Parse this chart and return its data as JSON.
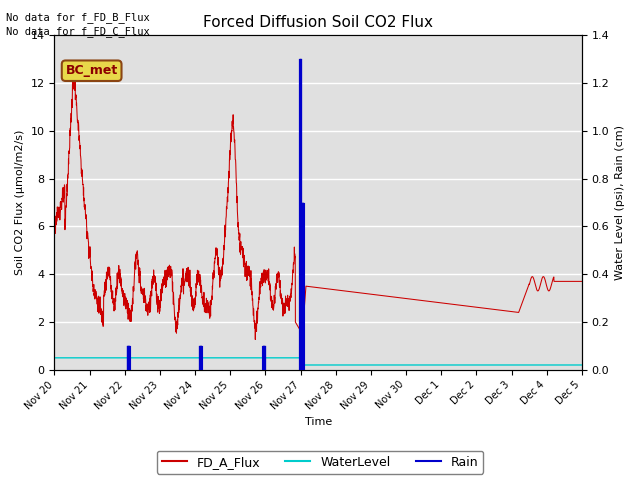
{
  "title": "Forced Diffusion Soil CO2 Flux",
  "xlabel": "Time",
  "ylabel_left": "Soil CO2 Flux (μmol/m2/s)",
  "ylabel_right": "Water Level (psi), Rain (cm)",
  "annotations": [
    "No data for f_FD_B_Flux",
    "No data for f_FD_C_Flux"
  ],
  "bc_met_label": "BC_met",
  "ylim_left": [
    0,
    14
  ],
  "ylim_right": [
    0,
    1.4
  ],
  "legend_labels": [
    "FD_A_Flux",
    "WaterLevel",
    "Rain"
  ],
  "flux_color": "#cc0000",
  "water_color": "#00cccc",
  "rain_color": "#0000cc",
  "bg_color": "#e0e0e0",
  "grid_color": "#ffffff",
  "tick_positions": [
    0,
    1,
    2,
    3,
    4,
    5,
    6,
    7,
    8,
    9,
    10,
    11,
    12,
    13,
    14,
    15
  ],
  "tick_labels": [
    "Nov 20",
    "Nov 21",
    "Nov 22",
    "Nov 23",
    "Nov 24",
    "Nov 25",
    "Nov 26",
    "Nov 27",
    "Nov 28",
    "Nov 29",
    "Nov 30",
    "Dec 1",
    "Dec 2",
    "Dec 3",
    "Dec 4",
    "Dec 5"
  ]
}
